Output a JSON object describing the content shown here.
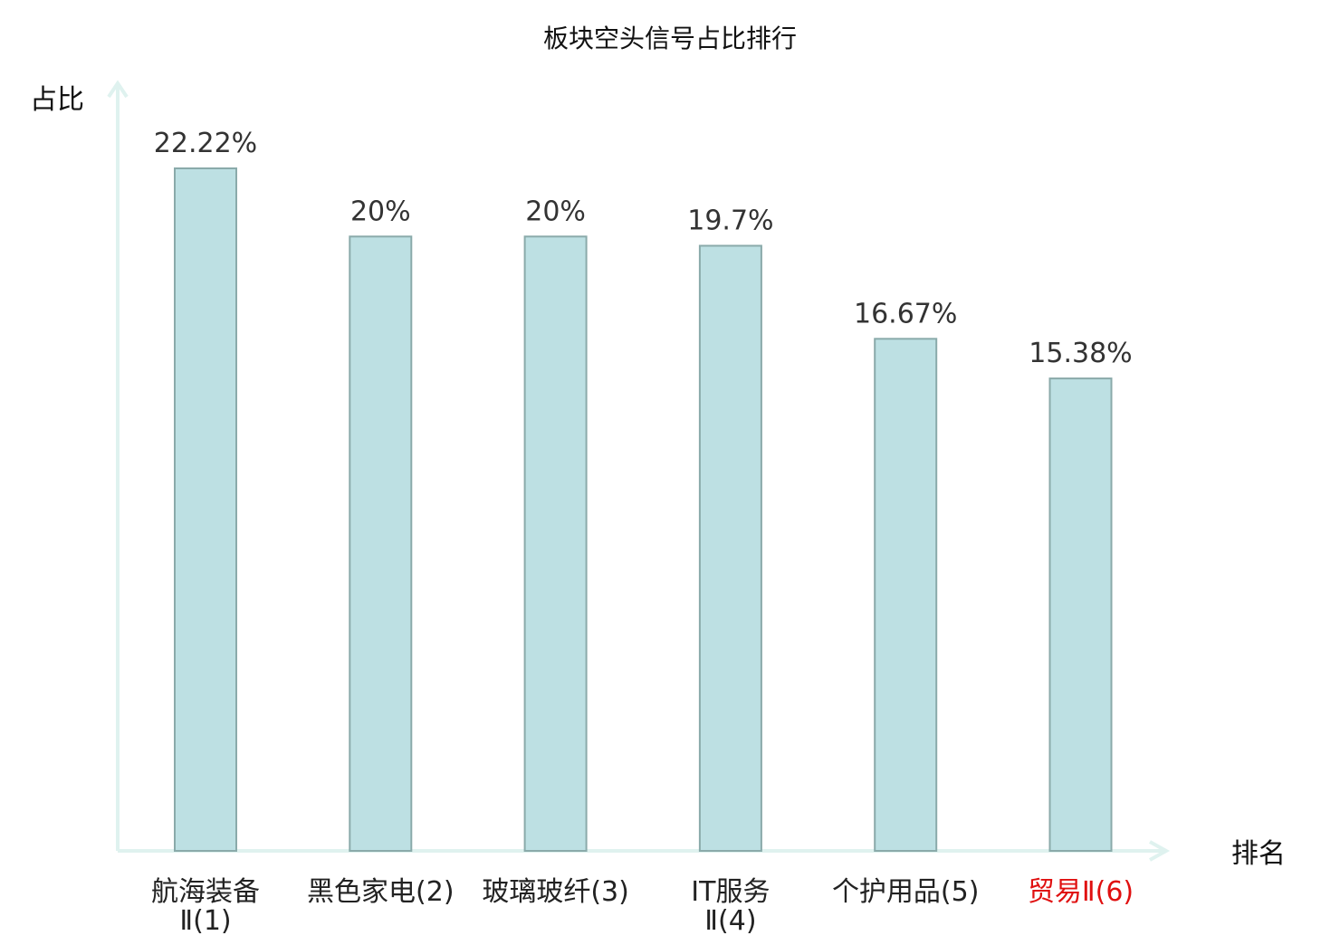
{
  "chart_data": {
    "type": "bar",
    "title": "板块空头信号占比排行",
    "ylabel": "占比",
    "xlabel": "排名",
    "categories": [
      [
        "航海装备",
        "Ⅱ(1)"
      ],
      [
        "黑色家电(2)"
      ],
      [
        "玻璃玻纤(3)"
      ],
      [
        "IT服务",
        "Ⅱ(4)"
      ],
      [
        "个护用品(5)"
      ],
      [
        "贸易Ⅱ(6)"
      ]
    ],
    "values": [
      22.22,
      20,
      20,
      19.7,
      16.67,
      15.38
    ],
    "value_labels": [
      "22.22%",
      "20%",
      "20%",
      "19.7%",
      "16.67%",
      "15.38%"
    ],
    "highlight_index": 5,
    "ylim": [
      0,
      22.22
    ],
    "grid": false,
    "legend": "none",
    "colors": {
      "bar_fill": "#bde0e3",
      "bar_stroke": "#8aaaaa",
      "axis": "#dff2ef",
      "text": "#222222",
      "value_text": "#333333",
      "highlight_text": "#e01010"
    }
  }
}
